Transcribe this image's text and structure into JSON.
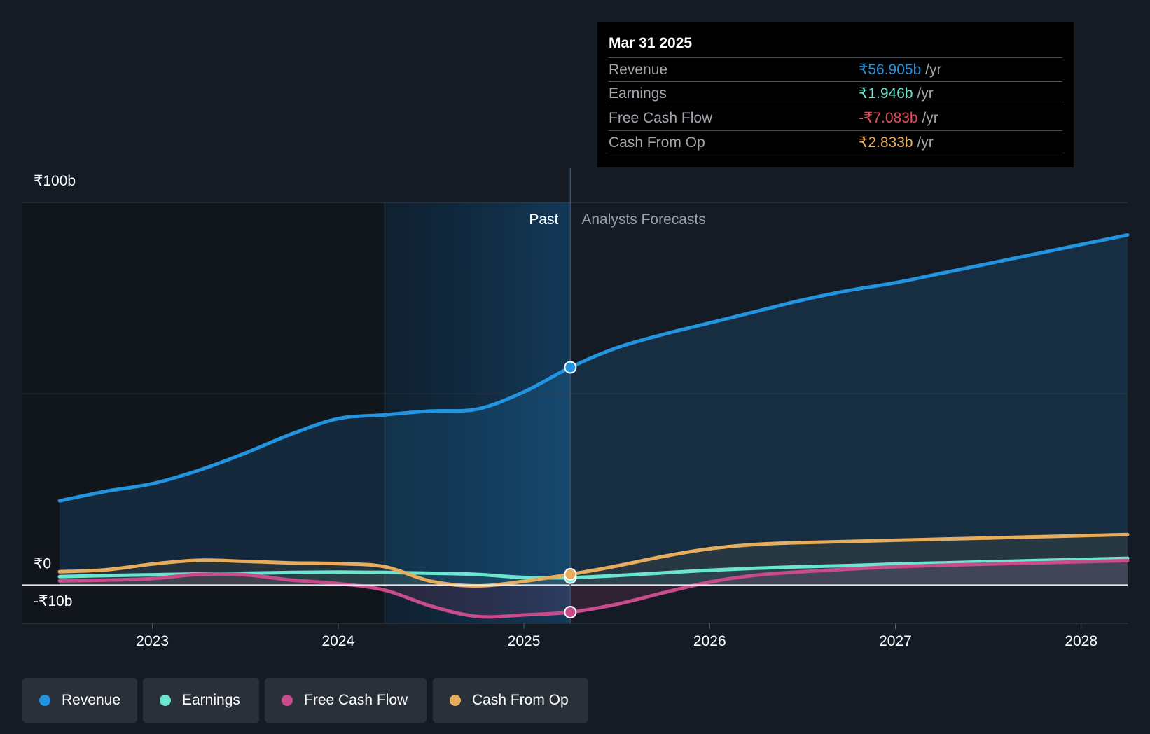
{
  "chart_data": {
    "type": "area",
    "currency_symbol": "₹",
    "y_unit": "b",
    "ylim": [
      -10,
      100
    ],
    "y_ticks": [
      {
        "value": 100,
        "label": "₹100b"
      },
      {
        "value": 0,
        "label": "₹0"
      },
      {
        "value": -10,
        "label": "-₹10b"
      }
    ],
    "xlim": [
      2022.3,
      2028.25
    ],
    "x_ticks": [
      {
        "value": 2023,
        "label": "2023"
      },
      {
        "value": 2024,
        "label": "2024"
      },
      {
        "value": 2025,
        "label": "2025"
      },
      {
        "value": 2026,
        "label": "2026"
      },
      {
        "value": 2027,
        "label": "2027"
      },
      {
        "value": 2028,
        "label": "2028"
      }
    ],
    "past_label": "Past",
    "forecast_label": "Analysts Forecasts",
    "highlight_start": 2024.25,
    "divider_x": 2025.25,
    "series": [
      {
        "key": "revenue",
        "name": "Revenue",
        "color": "#2394df",
        "points": [
          [
            2022.5,
            22.0
          ],
          [
            2022.75,
            24.5
          ],
          [
            2023.0,
            26.5
          ],
          [
            2023.25,
            30.0
          ],
          [
            2023.5,
            34.5
          ],
          [
            2023.75,
            39.5
          ],
          [
            2024.0,
            43.5
          ],
          [
            2024.25,
            44.5
          ],
          [
            2024.5,
            45.5
          ],
          [
            2024.75,
            46.0
          ],
          [
            2025.0,
            50.5
          ],
          [
            2025.25,
            56.9
          ],
          [
            2025.5,
            62.0
          ],
          [
            2025.75,
            65.5
          ],
          [
            2026.0,
            68.5
          ],
          [
            2026.25,
            71.5
          ],
          [
            2026.5,
            74.5
          ],
          [
            2026.75,
            77.0
          ],
          [
            2027.0,
            79.0
          ],
          [
            2027.25,
            81.5
          ],
          [
            2027.5,
            84.0
          ],
          [
            2027.75,
            86.5
          ],
          [
            2028.0,
            89.0
          ],
          [
            2028.25,
            91.5
          ]
        ]
      },
      {
        "key": "earnings",
        "name": "Earnings",
        "color": "#6ce5d0",
        "points": [
          [
            2022.5,
            2.2
          ],
          [
            2022.75,
            2.5
          ],
          [
            2023.0,
            2.7
          ],
          [
            2023.25,
            2.9
          ],
          [
            2023.5,
            3.1
          ],
          [
            2023.75,
            3.3
          ],
          [
            2024.0,
            3.4
          ],
          [
            2024.25,
            3.3
          ],
          [
            2024.5,
            3.1
          ],
          [
            2024.75,
            2.8
          ],
          [
            2025.0,
            2.0
          ],
          [
            2025.25,
            1.95
          ],
          [
            2025.5,
            2.5
          ],
          [
            2025.75,
            3.2
          ],
          [
            2026.0,
            3.9
          ],
          [
            2026.25,
            4.4
          ],
          [
            2026.5,
            4.8
          ],
          [
            2026.75,
            5.1
          ],
          [
            2027.0,
            5.5
          ],
          [
            2027.25,
            5.8
          ],
          [
            2027.5,
            6.1
          ],
          [
            2027.75,
            6.4
          ],
          [
            2028.0,
            6.7
          ],
          [
            2028.25,
            7.0
          ]
        ]
      },
      {
        "key": "fcf",
        "name": "Free Cash Flow",
        "color": "#c84c8c",
        "points": [
          [
            2022.5,
            1.1
          ],
          [
            2022.75,
            1.3
          ],
          [
            2023.0,
            1.7
          ],
          [
            2023.25,
            2.8
          ],
          [
            2023.5,
            2.7
          ],
          [
            2023.75,
            1.3
          ],
          [
            2024.0,
            0.4
          ],
          [
            2024.25,
            -1.3
          ],
          [
            2024.5,
            -5.5
          ],
          [
            2024.75,
            -8.2
          ],
          [
            2025.0,
            -7.8
          ],
          [
            2025.25,
            -7.08
          ],
          [
            2025.5,
            -5.0
          ],
          [
            2025.75,
            -2.0
          ],
          [
            2026.0,
            0.8
          ],
          [
            2026.25,
            2.6
          ],
          [
            2026.5,
            3.5
          ],
          [
            2026.75,
            4.2
          ],
          [
            2027.0,
            4.8
          ],
          [
            2027.25,
            5.2
          ],
          [
            2027.5,
            5.5
          ],
          [
            2027.75,
            5.8
          ],
          [
            2028.0,
            6.1
          ],
          [
            2028.25,
            6.4
          ]
        ]
      },
      {
        "key": "cfo",
        "name": "Cash From Op",
        "color": "#e8ad5c",
        "points": [
          [
            2022.5,
            3.5
          ],
          [
            2022.75,
            4.0
          ],
          [
            2023.0,
            5.5
          ],
          [
            2023.25,
            6.5
          ],
          [
            2023.5,
            6.2
          ],
          [
            2023.75,
            5.8
          ],
          [
            2024.0,
            5.6
          ],
          [
            2024.25,
            4.8
          ],
          [
            2024.5,
            1.0
          ],
          [
            2024.75,
            -0.2
          ],
          [
            2025.0,
            1.0
          ],
          [
            2025.25,
            2.83
          ],
          [
            2025.5,
            5.0
          ],
          [
            2025.75,
            7.5
          ],
          [
            2026.0,
            9.5
          ],
          [
            2026.25,
            10.6
          ],
          [
            2026.5,
            11.1
          ],
          [
            2026.75,
            11.4
          ],
          [
            2027.0,
            11.7
          ],
          [
            2027.25,
            12.0
          ],
          [
            2027.5,
            12.3
          ],
          [
            2027.75,
            12.6
          ],
          [
            2028.0,
            12.9
          ],
          [
            2028.25,
            13.2
          ]
        ]
      }
    ]
  },
  "tooltip": {
    "date": "Mar 31 2025",
    "rows": [
      {
        "label": "Revenue",
        "value": "₹56.905b",
        "unit": "/yr",
        "color": "#2394df"
      },
      {
        "label": "Earnings",
        "value": "₹1.946b",
        "unit": "/yr",
        "color": "#6ce5d0"
      },
      {
        "label": "Free Cash Flow",
        "value": "-₹7.083b",
        "unit": "/yr",
        "color": "#e84c5a"
      },
      {
        "label": "Cash From Op",
        "value": "₹2.833b",
        "unit": "/yr",
        "color": "#e8ad5c"
      }
    ]
  },
  "legend": [
    {
      "label": "Revenue",
      "color": "#2394df"
    },
    {
      "label": "Earnings",
      "color": "#6ce5d0"
    },
    {
      "label": "Free Cash Flow",
      "color": "#c84c8c"
    },
    {
      "label": "Cash From Op",
      "color": "#e8ad5c"
    }
  ]
}
